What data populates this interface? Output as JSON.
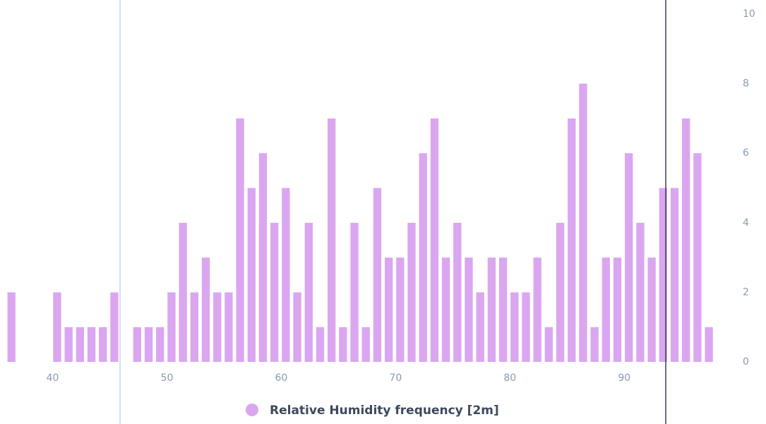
{
  "chart_data": {
    "type": "bar",
    "x": [
      36.4,
      40.4,
      41.4,
      42.4,
      43.4,
      44.4,
      45.4,
      47.4,
      48.4,
      49.4,
      50.4,
      51.4,
      52.4,
      53.4,
      54.4,
      55.4,
      56.4,
      57.4,
      58.4,
      59.4,
      60.4,
      61.4,
      62.4,
      63.4,
      64.4,
      65.4,
      66.4,
      67.4,
      68.4,
      69.4,
      70.4,
      71.4,
      72.4,
      73.4,
      74.4,
      75.4,
      76.4,
      77.4,
      78.4,
      79.4,
      80.4,
      81.4,
      82.4,
      83.4,
      84.4,
      85.4,
      86.4,
      87.4,
      88.4,
      89.4,
      90.4,
      91.4,
      92.4,
      93.4,
      94.4,
      95.4,
      96.4,
      97.4
    ],
    "series": [
      {
        "name": "Relative Humidity frequency [2m]",
        "color": "#dba6f0",
        "values": [
          2,
          2,
          1,
          1,
          1,
          1,
          2,
          1,
          1,
          1,
          2,
          4,
          2,
          3,
          2,
          2,
          7,
          5,
          6,
          4,
          5,
          2,
          4,
          1,
          7,
          1,
          4,
          1,
          5,
          3,
          3,
          4,
          6,
          7,
          3,
          4,
          3,
          2,
          3,
          3,
          2,
          2,
          3,
          1,
          4,
          7,
          8,
          1,
          3,
          3,
          6,
          4,
          3,
          5,
          5,
          7,
          6,
          1
        ]
      }
    ],
    "xlim": [
      35.4,
      99
    ],
    "xticks": [
      40,
      50,
      60,
      70,
      80,
      90
    ],
    "ylim": [
      0,
      10
    ],
    "yticks": [
      0,
      2,
      4,
      6,
      8,
      10
    ]
  }
}
